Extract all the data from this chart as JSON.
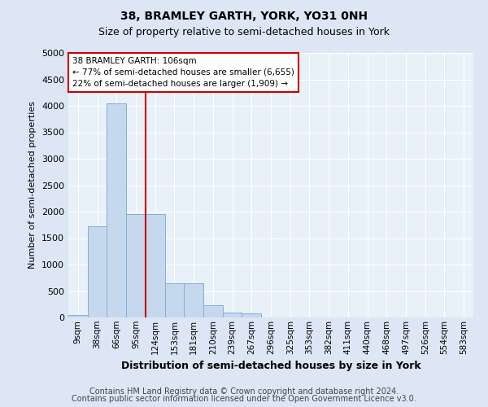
{
  "title1": "38, BRAMLEY GARTH, YORK, YO31 0NH",
  "title2": "Size of property relative to semi-detached houses in York",
  "xlabel": "Distribution of semi-detached houses by size in York",
  "ylabel": "Number of semi-detached properties",
  "bin_labels": [
    "9sqm",
    "38sqm",
    "66sqm",
    "95sqm",
    "124sqm",
    "153sqm",
    "181sqm",
    "210sqm",
    "239sqm",
    "267sqm",
    "296sqm",
    "325sqm",
    "353sqm",
    "382sqm",
    "411sqm",
    "440sqm",
    "468sqm",
    "497sqm",
    "526sqm",
    "554sqm",
    "583sqm"
  ],
  "bin_values": [
    50,
    1720,
    4050,
    1950,
    1950,
    650,
    650,
    230,
    100,
    80,
    0,
    0,
    0,
    0,
    0,
    0,
    0,
    0,
    0,
    0,
    0
  ],
  "bar_color": "#c5d8ee",
  "bar_edge_color": "#7fb0d8",
  "bar_alpha": 1.0,
  "vline_x": 3.5,
  "vline_color": "#cc0000",
  "ylim": [
    0,
    5000
  ],
  "yticks": [
    0,
    500,
    1000,
    1500,
    2000,
    2500,
    3000,
    3500,
    4000,
    4500,
    5000
  ],
  "annotation_title": "38 BRAMLEY GARTH: 106sqm",
  "annotation_line1": "← 77% of semi-detached houses are smaller (6,655)",
  "annotation_line2": "22% of semi-detached houses are larger (1,909) →",
  "annotation_box_color": "#ffffff",
  "annotation_box_edge": "#cc0000",
  "footer1": "Contains HM Land Registry data © Crown copyright and database right 2024.",
  "footer2": "Contains public sector information licensed under the Open Government Licence v3.0.",
  "bg_color": "#dce6f5",
  "plot_bg_color": "#e8f0f8",
  "grid_color": "#ffffff",
  "title1_fontsize": 10,
  "title2_fontsize": 9,
  "xlabel_fontsize": 9,
  "ylabel_fontsize": 8,
  "footer_fontsize": 7,
  "tick_labelsize": 7.5
}
